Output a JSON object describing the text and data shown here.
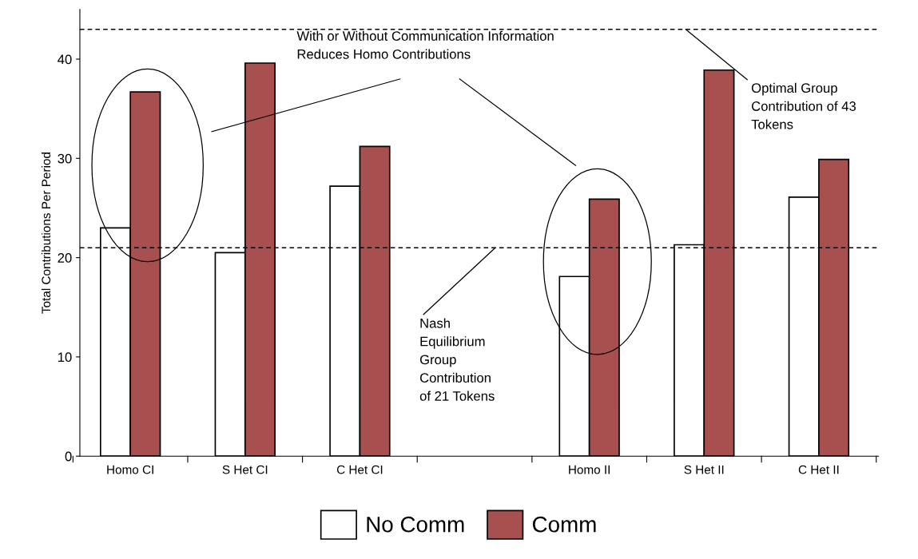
{
  "chart_data": {
    "type": "bar",
    "ylabel": "Total Contributions Per Period",
    "categories": [
      "Homo CI",
      "S Het CI",
      "C Het CI",
      null,
      "Homo II",
      "S Het II",
      "C Het II"
    ],
    "series": [
      {
        "name": "No Comm",
        "color": "#ffffff",
        "values": [
          23.0,
          20.5,
          27.2,
          null,
          18.1,
          21.3,
          26.1
        ]
      },
      {
        "name": "Comm",
        "color": "#a84f4f",
        "values": [
          36.7,
          39.6,
          31.2,
          null,
          25.9,
          38.9,
          29.9
        ]
      }
    ],
    "ylim": [
      0,
      45
    ],
    "yticks": [
      0,
      10,
      20,
      30,
      40
    ],
    "ref_lines": [
      {
        "axis": "y",
        "value": 43,
        "label": "Optimal Group\nContribution of 43\nTokens",
        "line_style": "dashed",
        "color": "#000000"
      },
      {
        "axis": "y",
        "value": 21,
        "label": "Nash\nEquilibrium\nGroup\nContribution\nof 21 Tokens",
        "line_style": "dashed",
        "color": "#000000"
      }
    ],
    "annotations": [
      "With or Without Communication Information\nReduces Homo Contributions"
    ],
    "grid": false,
    "legend": "bottom"
  }
}
